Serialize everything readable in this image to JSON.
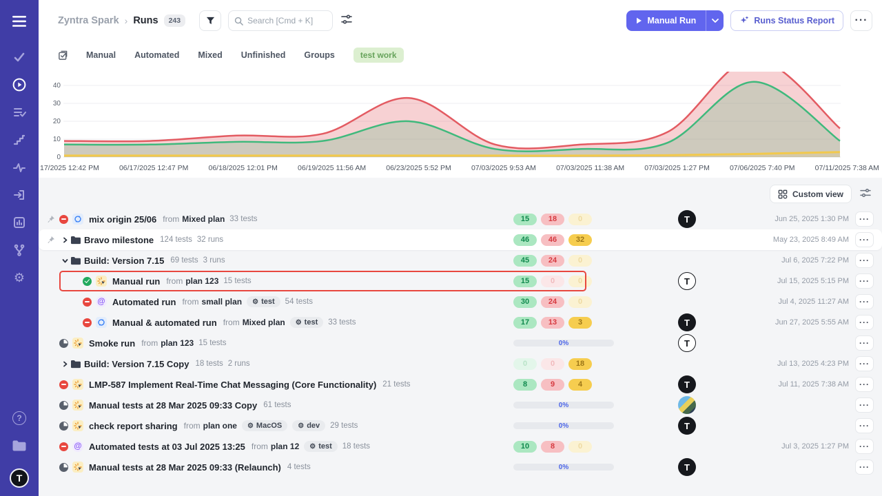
{
  "app": {
    "accent": "#6165ee",
    "sidebar_bg": "#403da6",
    "avatar_letter": "T"
  },
  "labels": {
    "from": "from"
  },
  "icons": {
    "more": "···",
    "gear_tag": "⚙",
    "automated_type": "@",
    "help": "?"
  },
  "sidebar": {
    "icons": [
      "menu-icon",
      "check-icon",
      "runs-play-icon",
      "test-cases-icon",
      "steps-icon",
      "activity-icon",
      "import-icon",
      "reports-icon",
      "branch-icon",
      "settings-gear-icon",
      "help-icon",
      "projects-folder-icon",
      "user-avatar"
    ]
  },
  "header": {
    "breadcrumb_project": "Zyntra Spark",
    "breadcrumb_sep": "›",
    "breadcrumb_page": "Runs",
    "count_badge": "243",
    "search_placeholder": "Search [Cmd + K]",
    "manual_run_label": "Manual Run",
    "runs_status_report_label": "Runs Status Report"
  },
  "tabs": {
    "items": [
      "Manual",
      "Automated",
      "Mixed",
      "Unfinished",
      "Groups"
    ],
    "filter_chip": "test work"
  },
  "chart_data": {
    "type": "area",
    "title": "",
    "x_labels": [
      "17/2025 12:42 PM",
      "06/17/2025 12:47 PM",
      "06/18/2025 12:01 PM",
      "06/19/2025 11:56 AM",
      "06/23/2025 5:52 PM",
      "07/03/2025 9:53 AM",
      "07/03/2025 11:38 AM",
      "07/03/2025 1:27 PM",
      "07/06/2025 7:40 PM",
      "07/11/2025 7:38 AM"
    ],
    "yticks": [
      0,
      10,
      20,
      30,
      40
    ],
    "ylim": [
      0,
      48
    ],
    "grid": true,
    "legend": "none",
    "series": [
      {
        "name": "failed",
        "color": "#e35b62",
        "fill": "rgba(227,91,98,0.28)",
        "values": [
          9,
          9,
          12,
          13,
          33,
          7,
          7,
          14,
          55,
          16
        ],
        "note": "peak clipped above axis"
      },
      {
        "name": "passed",
        "color": "#3fb97c",
        "fill": "rgba(113,185,139,0.30)",
        "values": [
          7,
          7,
          8.5,
          9,
          20,
          4.5,
          4.5,
          8,
          42,
          9
        ]
      },
      {
        "name": "skipped",
        "color": "#f2c94c",
        "fill": "rgba(242,201,76,0.18)",
        "values": [
          0.8,
          0.8,
          0.8,
          0.8,
          0.8,
          0.8,
          0.8,
          1,
          1.8,
          2.8
        ]
      }
    ]
  },
  "list_toolbar": {
    "custom_view_label": "Custom view"
  },
  "runs": [
    {
      "pinned": true,
      "status": "stopped",
      "type": "mixed",
      "title": "mix origin 25/06",
      "from": "Mixed plan",
      "tests": "33 tests",
      "stats": [
        {
          "value": "15",
          "color": "green"
        },
        {
          "value": "18",
          "color": "red"
        },
        {
          "value": "0",
          "color": "yellow",
          "faded": true
        }
      ],
      "avatar": "dark-t",
      "date": "Jun 25, 2025 1:30 PM"
    },
    {
      "pinned": true,
      "folder": true,
      "chevron": "right",
      "title": "Bravo milestone",
      "tests": "124 tests",
      "runs_count": "32 runs",
      "stats": [
        {
          "value": "46",
          "color": "green"
        },
        {
          "value": "46",
          "color": "red"
        },
        {
          "value": "32",
          "color": "yellow"
        }
      ],
      "date": "May 23, 2025 8:49 AM",
      "hover": true
    },
    {
      "folder": true,
      "chevron": "down",
      "title": "Build: Version 7.15",
      "tests": "69 tests",
      "runs_count": "3 runs",
      "stats": [
        {
          "value": "45",
          "color": "green"
        },
        {
          "value": "24",
          "color": "red"
        },
        {
          "value": "0",
          "color": "yellow",
          "faded": true
        }
      ],
      "date": "Jul 6, 2025 7:22 PM"
    },
    {
      "indent": true,
      "status": "passed",
      "type": "manual",
      "title": "Manual run",
      "from": "plan 123",
      "tests": "15 tests",
      "stats": [
        {
          "value": "15",
          "color": "green"
        },
        {
          "value": "0",
          "color": "red",
          "faded": true
        },
        {
          "value": "0",
          "color": "yellow",
          "faded": true
        }
      ],
      "avatar": "light-t",
      "date": "Jul 15, 2025 5:15 PM",
      "highlighted": true
    },
    {
      "indent": true,
      "status": "stopped",
      "type": "automated",
      "title": "Automated run",
      "from": "small plan",
      "tags": [
        "test"
      ],
      "tests": "54 tests",
      "stats": [
        {
          "value": "30",
          "color": "green"
        },
        {
          "value": "24",
          "color": "red"
        },
        {
          "value": "0",
          "color": "yellow",
          "faded": true
        }
      ],
      "date": "Jul 4, 2025 11:27 AM"
    },
    {
      "indent": true,
      "status": "stopped",
      "type": "mixed",
      "title": "Manual & automated run",
      "from": "Mixed plan",
      "tags": [
        "test"
      ],
      "tests": "33 tests",
      "stats": [
        {
          "value": "17",
          "color": "green"
        },
        {
          "value": "13",
          "color": "red"
        },
        {
          "value": "3",
          "color": "yellow"
        }
      ],
      "avatar": "dark-t",
      "date": "Jun 27, 2025 5:55 AM"
    },
    {
      "status": "progress",
      "type": "manual",
      "title": "Smoke run",
      "from": "plan 123",
      "tests": "15 tests",
      "progress": "0%",
      "avatar": "light-t"
    },
    {
      "folder": true,
      "chevron": "right",
      "title": "Build: Version 7.15 Copy",
      "tests": "18 tests",
      "runs_count": "2 runs",
      "stats": [
        {
          "value": "0",
          "color": "green",
          "faded": true
        },
        {
          "value": "0",
          "color": "red",
          "faded": true
        },
        {
          "value": "18",
          "color": "yellow"
        }
      ],
      "date": "Jul 13, 2025 4:23 PM"
    },
    {
      "status": "stopped",
      "type": "manual",
      "title": "LMP-587 Implement Real-Time Chat Messaging (Core Functionality)",
      "tests": "21 tests",
      "stats": [
        {
          "value": "8",
          "color": "green"
        },
        {
          "value": "9",
          "color": "red"
        },
        {
          "value": "4",
          "color": "yellow"
        }
      ],
      "avatar": "dark-t",
      "date": "Jul 11, 2025 7:38 AM"
    },
    {
      "status": "progress",
      "type": "manual",
      "title": "Manual tests at 28 Mar 2025 09:33 Copy",
      "tests": "61 tests",
      "progress": "0%",
      "avatar": "photo"
    },
    {
      "status": "progress",
      "type": "manual",
      "title": "check report sharing",
      "from": "plan one",
      "tags": [
        "MacOS",
        "dev"
      ],
      "tests": "29 tests",
      "progress": "0%",
      "avatar": "dark-t"
    },
    {
      "status": "stopped",
      "type": "automated",
      "title": "Automated tests at 03 Jul 2025 13:25",
      "from": "plan 12",
      "tags": [
        "test"
      ],
      "tests": "18 tests",
      "stats": [
        {
          "value": "10",
          "color": "green"
        },
        {
          "value": "8",
          "color": "red"
        },
        {
          "value": "0",
          "color": "yellow",
          "faded": true
        }
      ],
      "date": "Jul 3, 2025 1:27 PM"
    },
    {
      "status": "progress",
      "type": "manual",
      "title": "Manual tests at 28 Mar 2025 09:33 (Relaunch)",
      "tests": "4 tests",
      "progress": "0%",
      "avatar": "dark-t"
    }
  ]
}
